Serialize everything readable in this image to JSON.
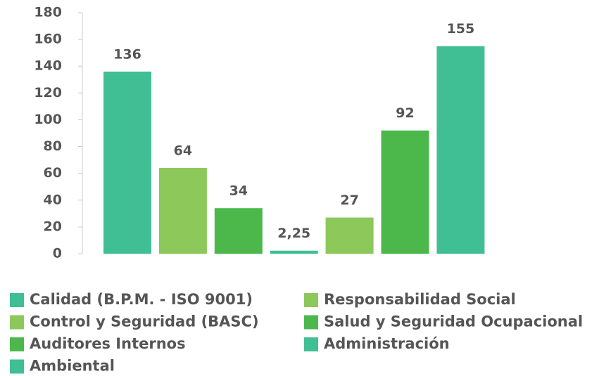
{
  "chart_data": {
    "type": "bar",
    "series": [
      {
        "name": "Calidad (B.P.M. - ISO 9001)",
        "color": "#40bf94",
        "values": [
          136
        ]
      },
      {
        "name": "Control y Seguridad (BASC)",
        "color": "#8cc85a",
        "values": [
          64
        ]
      },
      {
        "name": "Auditores Internos",
        "color": "#4cb84c",
        "values": [
          34
        ]
      },
      {
        "name": "Ambiental",
        "color": "#40bf94",
        "values": [
          2.25
        ],
        "value_labels": [
          "2,25"
        ]
      },
      {
        "name": "Responsabilidad Social",
        "color": "#8cc85a",
        "values": [
          27
        ]
      },
      {
        "name": "Salud y Seguridad Ocupacional",
        "color": "#4cb84c",
        "values": [
          92
        ]
      },
      {
        "name": "Administración",
        "color": "#40bf94",
        "values": [
          155
        ]
      }
    ],
    "ylim": [
      0,
      180
    ],
    "yticks": [
      0,
      20,
      40,
      60,
      80,
      100,
      120,
      140,
      160,
      180
    ]
  }
}
